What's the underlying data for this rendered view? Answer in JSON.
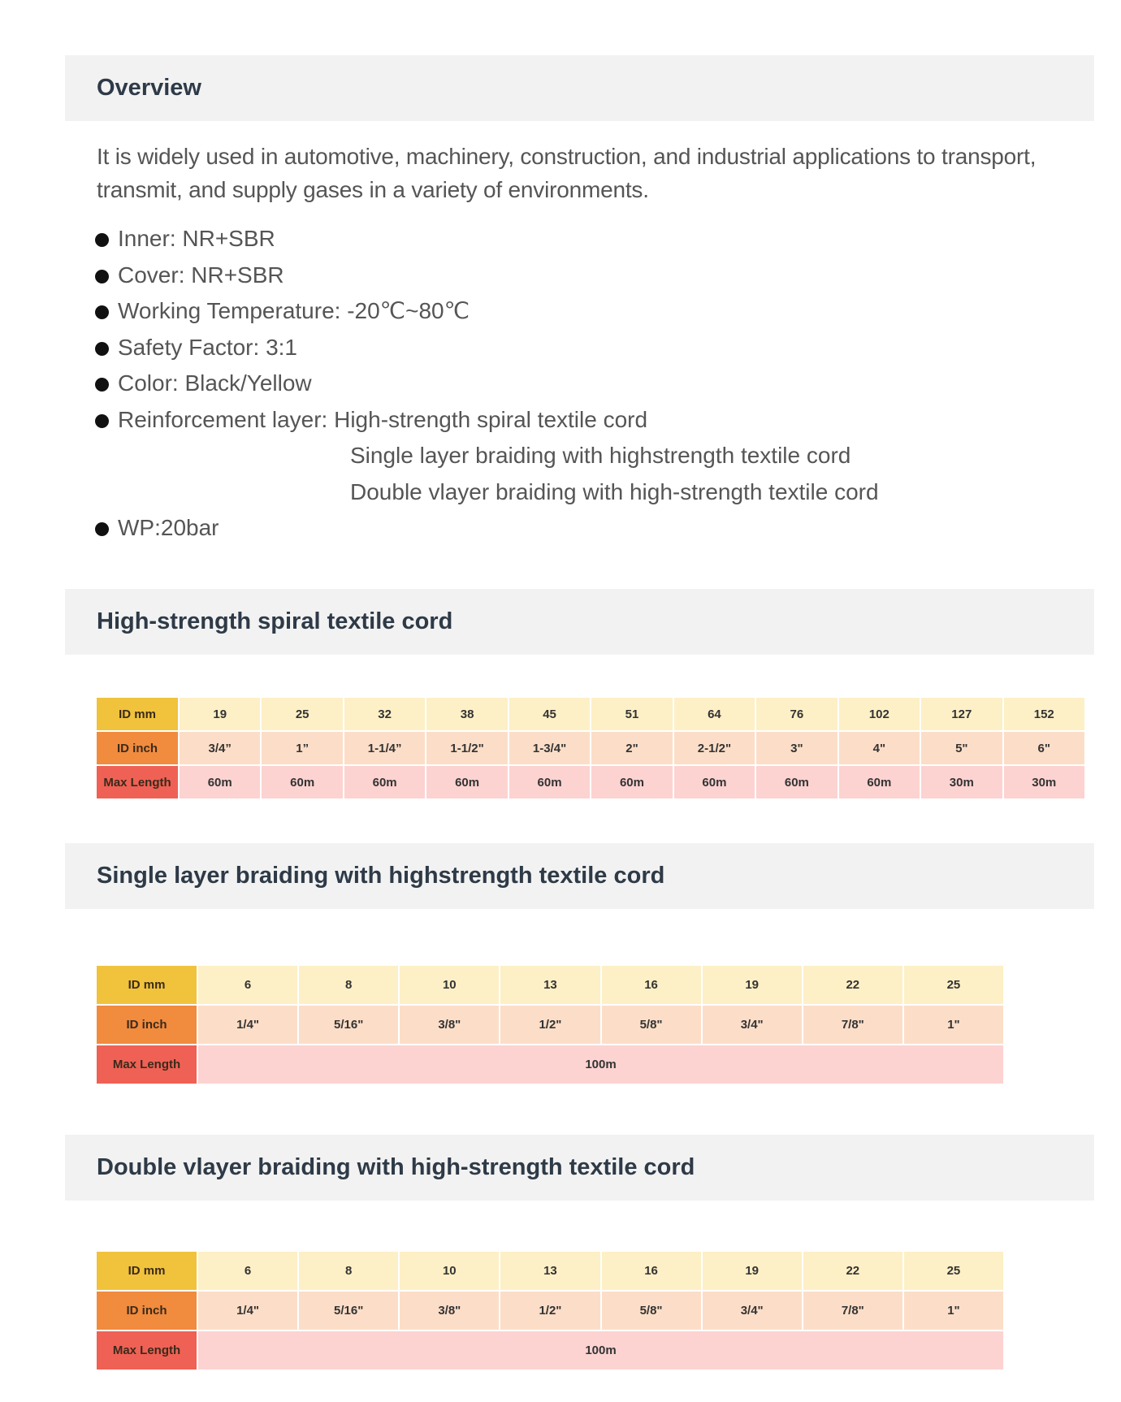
{
  "overview": {
    "title": "Overview",
    "description": "It is widely used in automotive, machinery, construction, and industrial applications to transport, transmit, and supply gases in a variety of environments.",
    "bullets": [
      "Inner: NR+SBR",
      "Cover: NR+SBR",
      "Working Temperature: -20℃~80℃",
      "Safety Factor: 3:1",
      "Color: Black/Yellow",
      "Reinforcement layer: High-strength spiral textile cord"
    ],
    "reinforcement_continued": [
      "Single layer braiding with highstrength textile cord",
      "Double vlayer braiding with high-strength textile cord"
    ],
    "wp": "WP:20bar"
  },
  "colors": {
    "id_mm": "#f1c23c",
    "id_inch": "#f18b3e",
    "max_length": "#ef6155"
  },
  "tables": [
    {
      "title": "High-strength spiral textile cord",
      "row_labels": [
        "ID mm",
        "ID inch",
        "Max Length"
      ],
      "id_mm": [
        "19",
        "25",
        "32",
        "38",
        "45",
        "51",
        "64",
        "76",
        "102",
        "127",
        "152"
      ],
      "id_inch": [
        "3/4”",
        "1”",
        "1-1/4”",
        "1-1/2\"",
        "1-3/4\"",
        "2\"",
        "2-1/2\"",
        "3\"",
        "4\"",
        "5\"",
        "6\""
      ],
      "max_length": [
        "60m",
        "60m",
        "60m",
        "60m",
        "60m",
        "60m",
        "60m",
        "60m",
        "60m",
        "30m",
        "30m"
      ]
    },
    {
      "title": "Single layer braiding with highstrength textile cord",
      "row_labels": [
        "ID mm",
        "ID inch",
        "Max Length"
      ],
      "id_mm": [
        "6",
        "8",
        "10",
        "13",
        "16",
        "19",
        "22",
        "25"
      ],
      "id_inch": [
        "1/4\"",
        "5/16\"",
        "3/8\"",
        "1/2\"",
        "5/8\"",
        "3/4\"",
        "7/8\"",
        "1\""
      ],
      "max_length_all": "100m"
    },
    {
      "title": "Double vlayer braiding with high-strength textile cord",
      "row_labels": [
        "ID mm",
        "ID inch",
        "Max Length"
      ],
      "id_mm": [
        "6",
        "8",
        "10",
        "13",
        "16",
        "19",
        "22",
        "25"
      ],
      "id_inch": [
        "1/4\"",
        "5/16\"",
        "3/8\"",
        "1/2\"",
        "5/8\"",
        "3/4\"",
        "7/8\"",
        "1\""
      ],
      "max_length_all": "100m"
    }
  ]
}
